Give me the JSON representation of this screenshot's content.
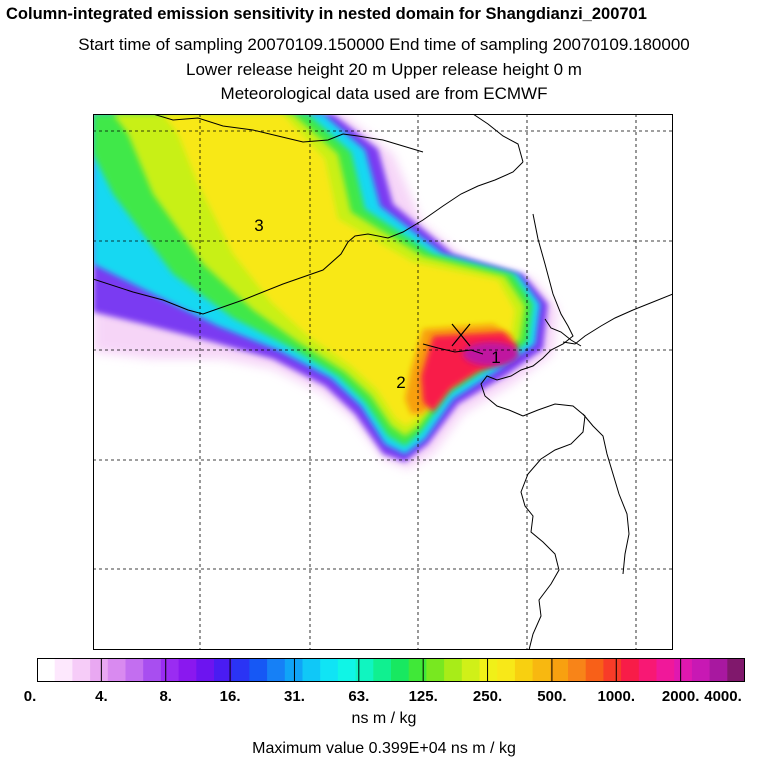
{
  "header": {
    "title": "Column-integrated emission sensitivity in nested domain for Shangdianzi_200701",
    "sampling": "Start time of sampling 20070109.150000     End time of sampling 20070109.180000",
    "release": "Lower release height   20 m          Upper release height    0 m",
    "met": "Meteorological data used are from ECMWF"
  },
  "map": {
    "labels": [
      {
        "text": "1"
      },
      {
        "text": "2"
      },
      {
        "text": "3"
      }
    ]
  },
  "colorbar": {
    "ticks": [
      "0.",
      "4.",
      "8.",
      "16.",
      "31.",
      "63.",
      "125.",
      "250.",
      "500.",
      "1000.",
      "2000.",
      "4000."
    ],
    "colors": [
      "#ffffff",
      "#fde8fd",
      "#f6ccf8",
      "#e9a8f2",
      "#d98af0",
      "#c36ef0",
      "#a84ef0",
      "#9a2cf2",
      "#8a18ef",
      "#6d14f0",
      "#4a1cf2",
      "#2a34f4",
      "#1658f5",
      "#1680f6",
      "#10a4f7",
      "#10c8f7",
      "#10e4f5",
      "#10f5e6",
      "#10f5c0",
      "#10f090",
      "#18e860",
      "#40e838",
      "#78e820",
      "#a8ec18",
      "#d0f018",
      "#f0f018",
      "#f8e818",
      "#f8d010",
      "#f8b810",
      "#f8a010",
      "#f88418",
      "#f86018",
      "#f83c28",
      "#f81c48",
      "#f81874",
      "#f0189a",
      "#e018b0",
      "#c818b4",
      "#a818a0",
      "#80186c"
    ],
    "units": "ns m / kg"
  },
  "footer": {
    "max_value": "Maximum value  0.399E+04 ns m / kg"
  }
}
